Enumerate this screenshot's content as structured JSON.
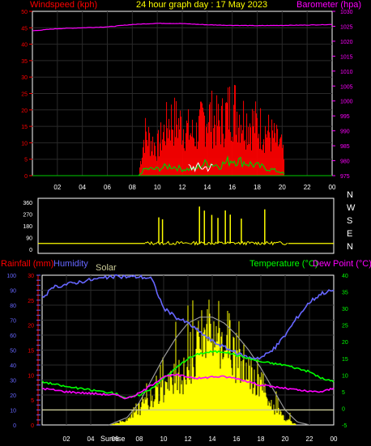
{
  "header": {
    "title": "24 hour graph day : 17 May 2023",
    "left_label": "Windspeed (kph)",
    "right_label": "Barometer (hpa)"
  },
  "colors": {
    "background": "#000000",
    "plot_bg": "#000000",
    "frame": "#ffffff",
    "grid": "#2a2a2a",
    "wind": "#ff0000",
    "gust": "#00cc00",
    "avg": "#ffffff",
    "barometer": "#ff00ff",
    "direction": "#ffff00",
    "humidity": "#6666ff",
    "temperature": "#00ff00",
    "dewpoint": "#ff00ff",
    "solar": "#ffff00",
    "solar_max": "#999999",
    "rainfall": "#ff0000",
    "hour_text": "#ffffff",
    "title_text": "#ffff00"
  },
  "hour_ticks": [
    "02",
    "04",
    "06",
    "08",
    "10",
    "12",
    "14",
    "16",
    "18",
    "20",
    "22",
    "00"
  ],
  "chart_data": [
    {
      "type": "line",
      "name": "wind-barometer",
      "left_axis": {
        "label": "Windspeed (kph)",
        "ylim": [
          0,
          50
        ],
        "ticks": [
          "0",
          "5",
          "10",
          "15",
          "20",
          "25",
          "30",
          "35",
          "40",
          "45",
          "50"
        ]
      },
      "right_axis": {
        "label": "Barometer (hpa)",
        "ylim": [
          975,
          1030
        ],
        "ticks": [
          "975",
          "980",
          "985",
          "990",
          "995",
          "1000",
          "1005",
          "1010",
          "1015",
          "1020",
          "1025",
          "1030"
        ]
      },
      "series": [
        {
          "name": "Barometer",
          "x_hours": [
            0,
            2,
            4,
            6,
            8,
            10,
            12,
            14,
            16,
            18,
            20,
            22,
            24
          ],
          "values": [
            1023.5,
            1024.2,
            1024.5,
            1024.8,
            1025.6,
            1026.0,
            1025.9,
            1025.5,
            1025.3,
            1025.2,
            1025.3,
            1025.4,
            1025.6
          ]
        },
        {
          "name": "Windspeed",
          "x_hours": [
            8.5,
            9,
            10,
            11,
            12,
            13,
            14,
            15,
            16,
            17,
            18,
            19,
            20,
            20.3
          ],
          "values": [
            0,
            15,
            10,
            20,
            18,
            14,
            22,
            18,
            25,
            20,
            18,
            15,
            10,
            0
          ]
        },
        {
          "name": "Gust",
          "x_hours": [
            8.5,
            9,
            10,
            11,
            12,
            13,
            14,
            15,
            16,
            17,
            18,
            19,
            20,
            20.3
          ],
          "values": [
            0,
            2,
            2,
            3,
            2,
            2,
            4,
            3,
            5,
            4,
            3,
            2,
            1,
            0
          ]
        }
      ]
    },
    {
      "type": "scatter",
      "name": "wind-direction",
      "ylim": [
        0,
        360
      ],
      "ticks": [
        "0",
        "90",
        "180",
        "270",
        "360"
      ],
      "compass": [
        "N",
        "W",
        "S",
        "E",
        "N"
      ],
      "series": [
        {
          "name": "Direction",
          "x_hours": [
            0,
            8.5,
            9.5,
            10,
            10.5,
            11,
            12,
            13,
            14,
            15,
            16,
            17,
            18,
            19,
            20,
            20.3,
            24
          ],
          "values": [
            45,
            45,
            45,
            60,
            40,
            50,
            45,
            60,
            40,
            55,
            45,
            50,
            45,
            40,
            50,
            45,
            45
          ]
        }
      ]
    },
    {
      "type": "line",
      "name": "temperature-humidity-solar",
      "left_axis": {
        "label": "Rainfall (mm)",
        "ylim": [
          0,
          100
        ],
        "ticks": [
          "0",
          "10",
          "20",
          "30",
          "40",
          "50",
          "60",
          "70",
          "80",
          "90",
          "100"
        ]
      },
      "left_axis_2": {
        "ylim": [
          0,
          30
        ],
        "ticks": [
          "0",
          "5",
          "10",
          "15",
          "20",
          "25",
          "30"
        ]
      },
      "right_axis": {
        "label": "Temperature (°C)",
        "label_2": "Dew Point (°C)",
        "ylim": [
          -5,
          40
        ],
        "ticks": [
          "-5",
          "0",
          "5",
          "10",
          "15",
          "20",
          "25",
          "30",
          "35",
          "40"
        ]
      },
      "labels": {
        "humidity": "Humidity",
        "solar": "Solar",
        "sunrise": "Sunrise",
        "sunset": "Sunset"
      },
      "series": [
        {
          "name": "Humidity",
          "x_hours": [
            0,
            1,
            2,
            4,
            6,
            8,
            9,
            10,
            11,
            12,
            13,
            14,
            15,
            16,
            17,
            18,
            19,
            20,
            21,
            22,
            23,
            24
          ],
          "values": [
            85,
            92,
            94,
            97,
            99,
            99,
            98,
            78,
            72,
            68,
            62,
            56,
            52,
            48,
            45,
            45,
            50,
            60,
            72,
            82,
            88,
            90
          ]
        },
        {
          "name": "Temperature",
          "x_hours": [
            0,
            2,
            4,
            6,
            7,
            8,
            9,
            10,
            11,
            12,
            13,
            14,
            15,
            16,
            17,
            18,
            19,
            20,
            21,
            22,
            23,
            24
          ],
          "values": [
            8,
            6.5,
            5.5,
            4.5,
            3,
            4,
            6,
            9,
            12,
            15,
            16.5,
            17,
            17,
            16,
            15,
            14,
            13.5,
            13,
            12,
            11,
            9,
            8
          ]
        },
        {
          "name": "Dew Point",
          "x_hours": [
            0,
            2,
            4,
            6,
            7,
            8,
            9,
            10,
            11,
            12,
            13,
            14,
            15,
            16,
            17,
            18,
            19,
            20,
            21,
            22,
            23,
            24
          ],
          "values": [
            6,
            5,
            4.5,
            4,
            3,
            4.5,
            7,
            9.5,
            10,
            9.5,
            9,
            9.5,
            9.5,
            9,
            8,
            7,
            6.5,
            6,
            5.5,
            5,
            5,
            6
          ]
        },
        {
          "name": "Solar Max",
          "x_hours": [
            5.5,
            7,
            8,
            9,
            10,
            11,
            12,
            13,
            14,
            15,
            16,
            17,
            18,
            19,
            20,
            21,
            22
          ],
          "values": [
            0,
            5,
            15,
            30,
            45,
            58,
            68,
            72,
            72,
            68,
            60,
            50,
            38,
            24,
            10,
            2,
            0
          ]
        },
        {
          "name": "Solar",
          "x_hours": [
            5.5,
            7,
            8,
            9,
            10,
            11,
            12,
            13,
            14,
            15,
            16,
            17,
            18,
            19,
            20,
            21
          ],
          "values": [
            0,
            3,
            10,
            18,
            25,
            30,
            35,
            50,
            60,
            55,
            45,
            35,
            25,
            12,
            4,
            0
          ]
        }
      ]
    }
  ]
}
